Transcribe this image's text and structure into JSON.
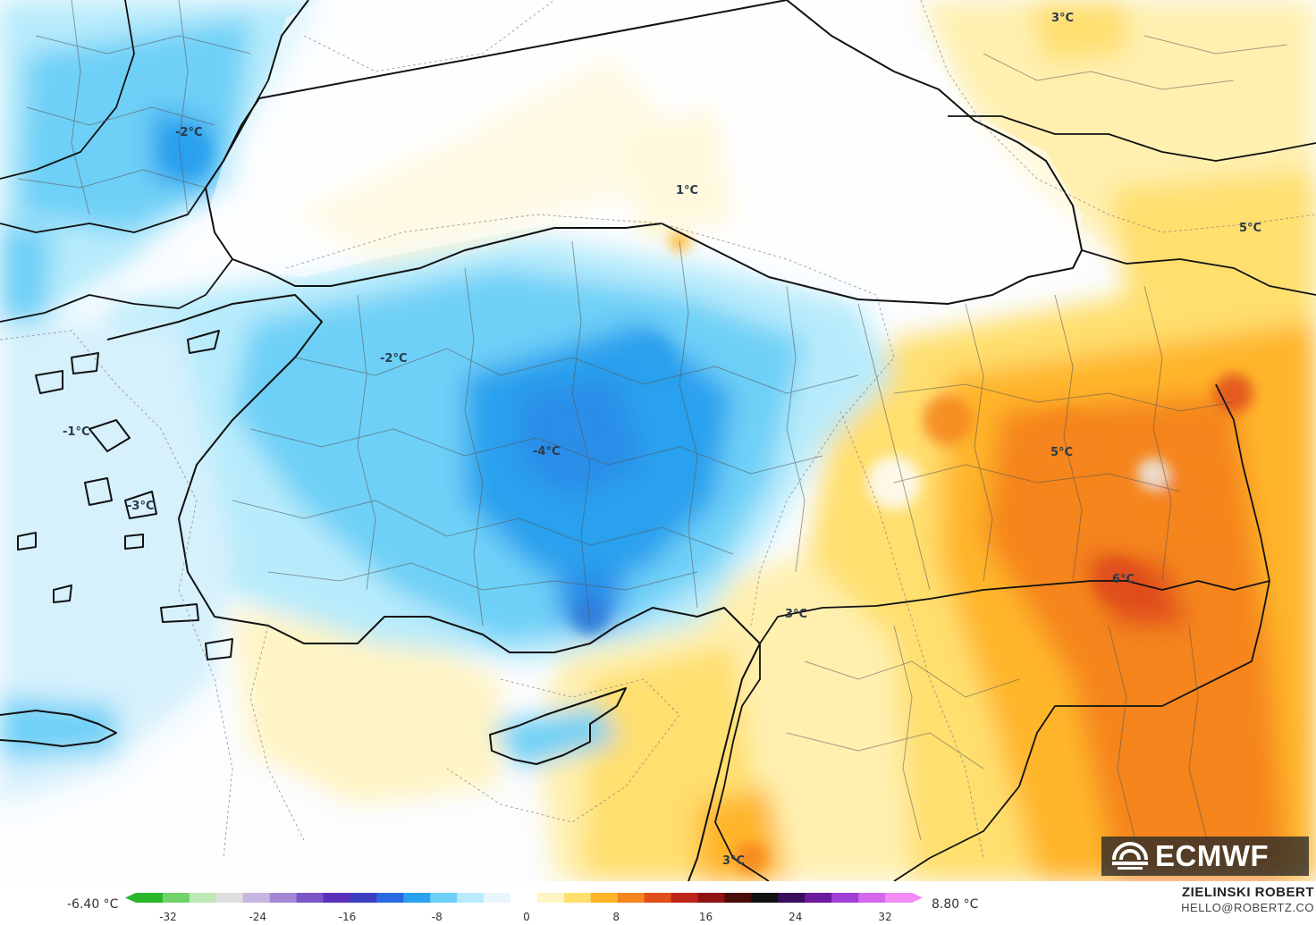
{
  "map": {
    "labels": [
      {
        "id": "lbl-balkans",
        "text": "-2°C"
      },
      {
        "id": "lbl-blacksea",
        "text": "1°C"
      },
      {
        "id": "lbl-caucasus-n",
        "text": "3°C"
      },
      {
        "id": "lbl-caucasus-e",
        "text": "5°C"
      },
      {
        "id": "lbl-marmara",
        "text": "-2°C"
      },
      {
        "id": "lbl-aegean",
        "text": "-1°C"
      },
      {
        "id": "lbl-dodecanese",
        "text": "-3°C"
      },
      {
        "id": "lbl-central",
        "text": "-4°C"
      },
      {
        "id": "lbl-east",
        "text": "5°C"
      },
      {
        "id": "lbl-southeast",
        "text": "6°C"
      },
      {
        "id": "lbl-hatay",
        "text": "3°C"
      },
      {
        "id": "lbl-levant",
        "text": "3°C"
      }
    ]
  },
  "legend": {
    "min_value": "-6.40 °C",
    "max_value": "8.80 °C",
    "ticks": [
      "-32",
      "-24",
      "-16",
      "-8",
      "0",
      "8",
      "16",
      "24",
      "32"
    ],
    "colors": [
      "#29b52a",
      "#71d36a",
      "#bde8b6",
      "#dedede",
      "#c7b7e0",
      "#a387d4",
      "#7b55c8",
      "#5a31b8",
      "#3b3fc0",
      "#2a6ae0",
      "#2aa1ee",
      "#6ed0f7",
      "#b7ebfb",
      "#e8f7fd",
      "#ffffff",
      "#fff4c4",
      "#ffdf6e",
      "#ffb529",
      "#f5851e",
      "#e04e1c",
      "#bf2418",
      "#8e1212",
      "#4a0b0b",
      "#111111",
      "#3a0d5e",
      "#6c1a9e",
      "#a13ed6",
      "#d567ec",
      "#f08cf4"
    ]
  },
  "credit": {
    "name": "ZIELINSKI ROBERT",
    "email": "HELLO@ROBERTZ.CO"
  },
  "brand": {
    "logo": "ECMWF",
    "icon": "ecmwf-swirl-icon"
  }
}
